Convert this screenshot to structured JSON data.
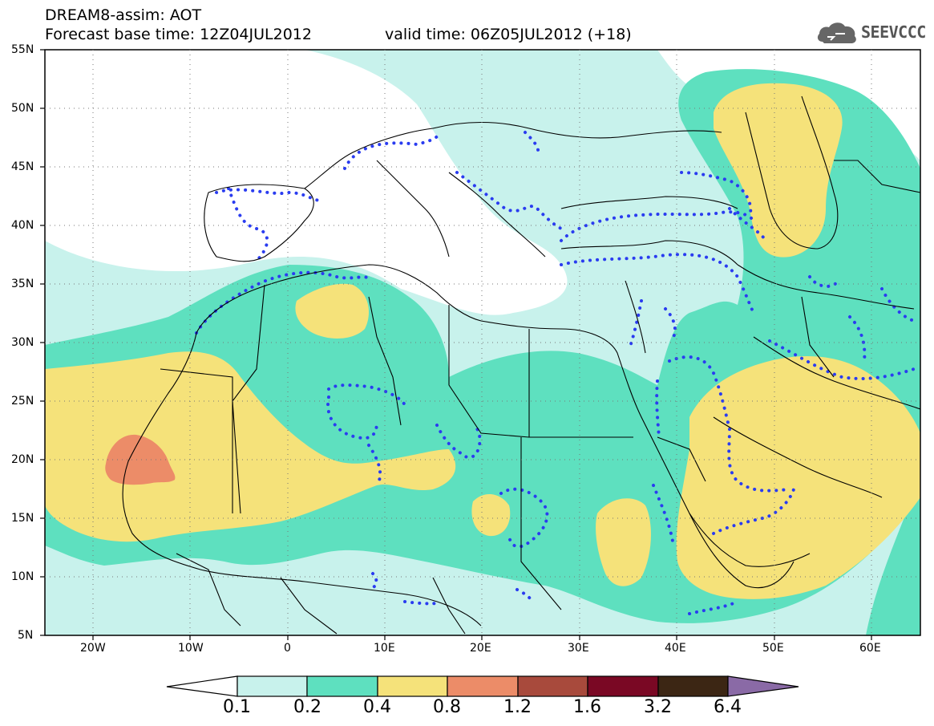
{
  "header": {
    "title": "DREAM8-assim: AOT",
    "base_time": "Forecast base time: 12Z04JUL2012",
    "valid_time": "valid time: 06Z05JUL2012 (+18)"
  },
  "logo": {
    "text": "SEEVCCC",
    "icon": "cloud-icon"
  },
  "map": {
    "projection": "lat-lon",
    "lon_range": [
      -25,
      65
    ],
    "lat_range": [
      5,
      55
    ],
    "grid": "dotted",
    "lat_labels": [
      "55N",
      "50N",
      "45N",
      "40N",
      "35N",
      "30N",
      "25N",
      "20N",
      "15N",
      "10N",
      "5N"
    ],
    "lon_labels": [
      "20W",
      "10W",
      "0",
      "10E",
      "20E",
      "30E",
      "40E",
      "50E",
      "60E"
    ],
    "field": "aerosol optical thickness",
    "overlay": "blue dotted contour"
  },
  "colorbar": {
    "labels": [
      "0.1",
      "0.2",
      "0.4",
      "0.8",
      "1.2",
      "1.6",
      "3.2",
      "6.4"
    ],
    "colors": [
      "#ffffff",
      "#c8f2ec",
      "#5ee0bf",
      "#f5e27a",
      "#ec8c68",
      "#a84a3c",
      "#7a0824",
      "#3c2614",
      "#8a6aa6"
    ]
  },
  "colors": {
    "low": "#c8f2ec",
    "mid": "#5ee0bf",
    "high": "#f5e27a",
    "peak": "#ec8c68",
    "contour": "#2a3cf0"
  }
}
